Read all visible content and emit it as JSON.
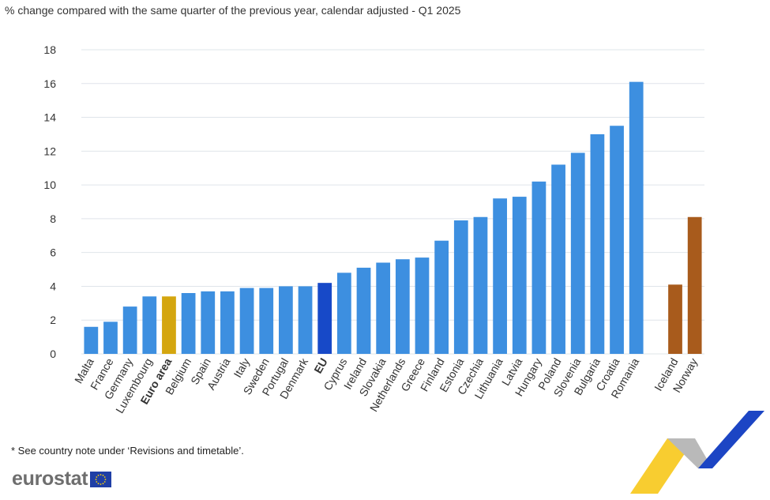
{
  "header": {
    "title": "% change compared with the same quarter of the previous year, calendar adjusted - Q1 2025"
  },
  "chart_data": {
    "type": "bar",
    "title": "% change compared with the same quarter of the previous year, calendar adjusted - Q1 2025",
    "xlabel": "",
    "ylabel": "",
    "ylim": [
      0,
      18
    ],
    "yticks": [
      0,
      2,
      4,
      6,
      8,
      10,
      12,
      14,
      16,
      18
    ],
    "grid": true,
    "categories": [
      "Malta",
      "France",
      "Germany",
      "Luxembourg",
      "Euro area",
      "Belgium",
      "Spain",
      "Austria",
      "Italy",
      "Sweden",
      "Portugal",
      "Denmark",
      "EU",
      "Cyprus",
      "Ireland",
      "Slovakia",
      "Netherlands",
      "Greece",
      "Finland",
      "Estonia",
      "Czechia",
      "Lithuania",
      "Latvia",
      "Hungary",
      "Poland",
      "Slovenia",
      "Bulgaria",
      "Croatia",
      "Romania",
      "",
      "Iceland",
      "Norway"
    ],
    "values": [
      1.6,
      1.9,
      2.8,
      3.4,
      3.4,
      3.6,
      3.7,
      3.7,
      3.9,
      3.9,
      4.0,
      4.0,
      4.2,
      4.8,
      5.1,
      5.4,
      5.6,
      5.7,
      6.7,
      7.9,
      8.1,
      9.2,
      9.3,
      10.2,
      11.2,
      11.9,
      13.0,
      13.5,
      16.1,
      null,
      4.1,
      8.1
    ],
    "bold_categories": [
      "Euro area",
      "EU"
    ],
    "colors": {
      "country": "#3d8fe0",
      "euro_area": "#d4a60f",
      "eu": "#1749c8",
      "efta": "#a85b1c",
      "grid": "#dfe4ea",
      "axis_text": "#333333"
    },
    "bar_color_groups": [
      "country",
      "country",
      "country",
      "country",
      "euro_area",
      "country",
      "country",
      "country",
      "country",
      "country",
      "country",
      "country",
      "eu",
      "country",
      "country",
      "country",
      "country",
      "country",
      "country",
      "country",
      "country",
      "country",
      "country",
      "country",
      "country",
      "country",
      "country",
      "country",
      "country",
      null,
      "efta",
      "efta"
    ]
  },
  "footer": {
    "note": "* See country note under ‘Revisions and timetable’.",
    "brand": "eurostat"
  }
}
